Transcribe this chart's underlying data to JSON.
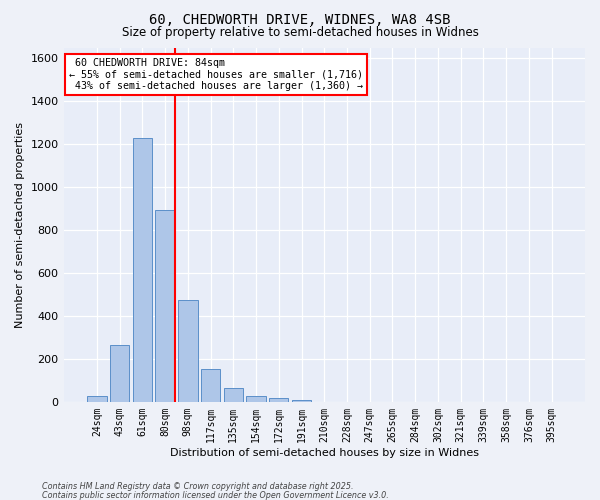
{
  "title_line1": "60, CHEDWORTH DRIVE, WIDNES, WA8 4SB",
  "title_line2": "Size of property relative to semi-detached houses in Widnes",
  "xlabel": "Distribution of semi-detached houses by size in Widnes",
  "ylabel": "Number of semi-detached properties",
  "bar_labels": [
    "24sqm",
    "43sqm",
    "61sqm",
    "80sqm",
    "98sqm",
    "117sqm",
    "135sqm",
    "154sqm",
    "172sqm",
    "191sqm",
    "210sqm",
    "228sqm",
    "247sqm",
    "265sqm",
    "284sqm",
    "302sqm",
    "321sqm",
    "339sqm",
    "358sqm",
    "376sqm",
    "395sqm"
  ],
  "bar_heights": [
    28,
    265,
    1230,
    895,
    475,
    155,
    65,
    28,
    18,
    10,
    0,
    0,
    0,
    0,
    0,
    0,
    0,
    0,
    0,
    0,
    0
  ],
  "bar_color": "#aec6e8",
  "bar_edge_color": "#5b8fc9",
  "background_color": "#e8edf8",
  "grid_color": "#ffffff",
  "property_label": "60 CHEDWORTH DRIVE: 84sqm",
  "pct_smaller": 55,
  "pct_larger": 43,
  "count_smaller": 1716,
  "count_larger": 1360,
  "vline_color": "red",
  "ylim": [
    0,
    1650
  ],
  "yticks": [
    0,
    200,
    400,
    600,
    800,
    1000,
    1200,
    1400,
    1600
  ],
  "footnote_line1": "Contains HM Land Registry data © Crown copyright and database right 2025.",
  "footnote_line2": "Contains public sector information licensed under the Open Government Licence v3.0."
}
